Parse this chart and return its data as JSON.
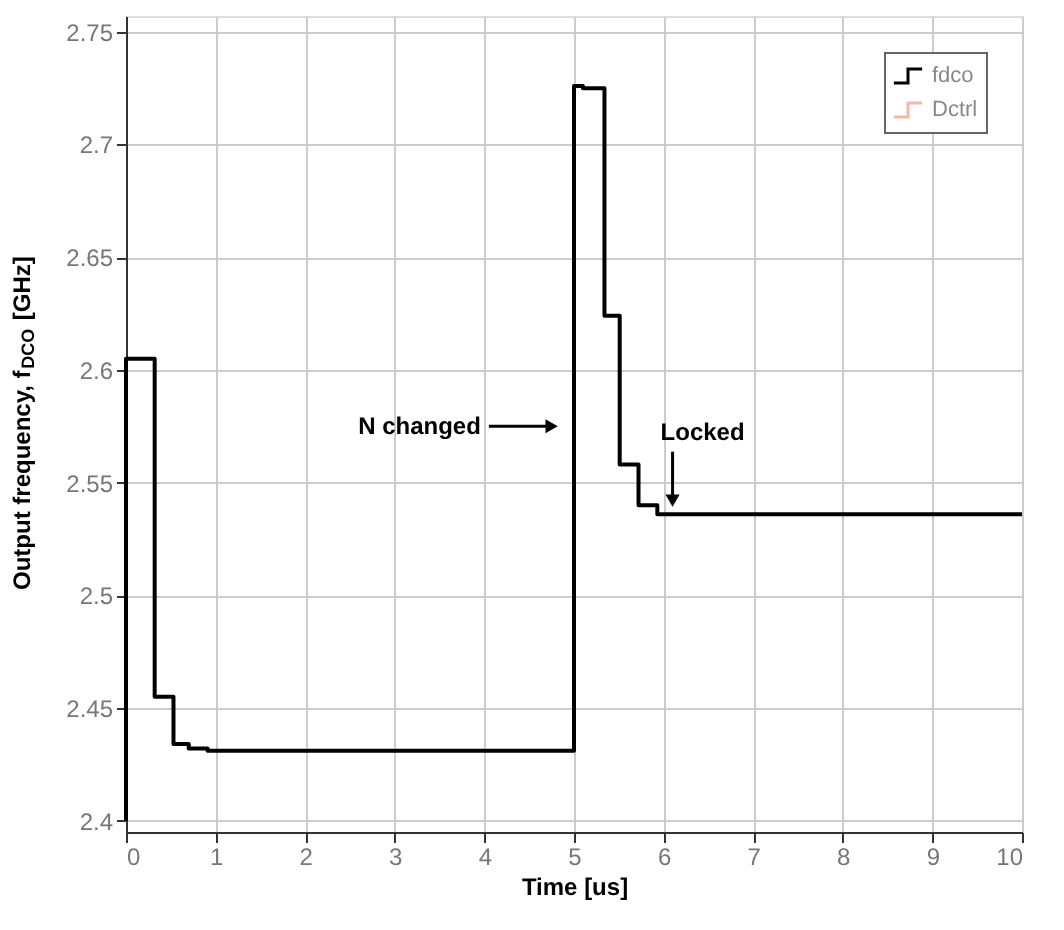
{
  "chart_data": {
    "type": "step",
    "xlabel": "Time [us]",
    "ylabel": "Output frequency, f$_{DCO}$ [GHz]",
    "xlim": [
      0,
      10
    ],
    "xticks": [
      0,
      1,
      2,
      3,
      4,
      5,
      6,
      7,
      8,
      9,
      10
    ],
    "ylim": [
      2.395,
      2.757
    ],
    "yticks": [
      2.4,
      2.45,
      2.5,
      2.55,
      2.6,
      2.65,
      2.7,
      2.75
    ],
    "grid": true,
    "legend": "top right",
    "marker": "none",
    "line_style": "solid",
    "series": [
      {
        "name": "fdco",
        "color": "#000000",
        "x": [
          0,
          0,
          0.32,
          0.53,
          0.7,
          0.91,
          5.0,
          5.1,
          5.34,
          5.51,
          5.72,
          5.93,
          10
        ],
        "values": [
          2.4,
          2.605,
          2.455,
          2.434,
          2.432,
          2.431,
          2.726,
          2.725,
          2.624,
          2.558,
          2.54,
          2.536,
          2.536
        ]
      },
      {
        "name": "Dctrl",
        "color": "#f4b8a8"
      }
    ],
    "annotations": [
      {
        "text": "N changed",
        "x": 4.75,
        "y": 2.575
      },
      {
        "text": "Locked",
        "x": 6.1,
        "y": 2.542
      }
    ]
  }
}
